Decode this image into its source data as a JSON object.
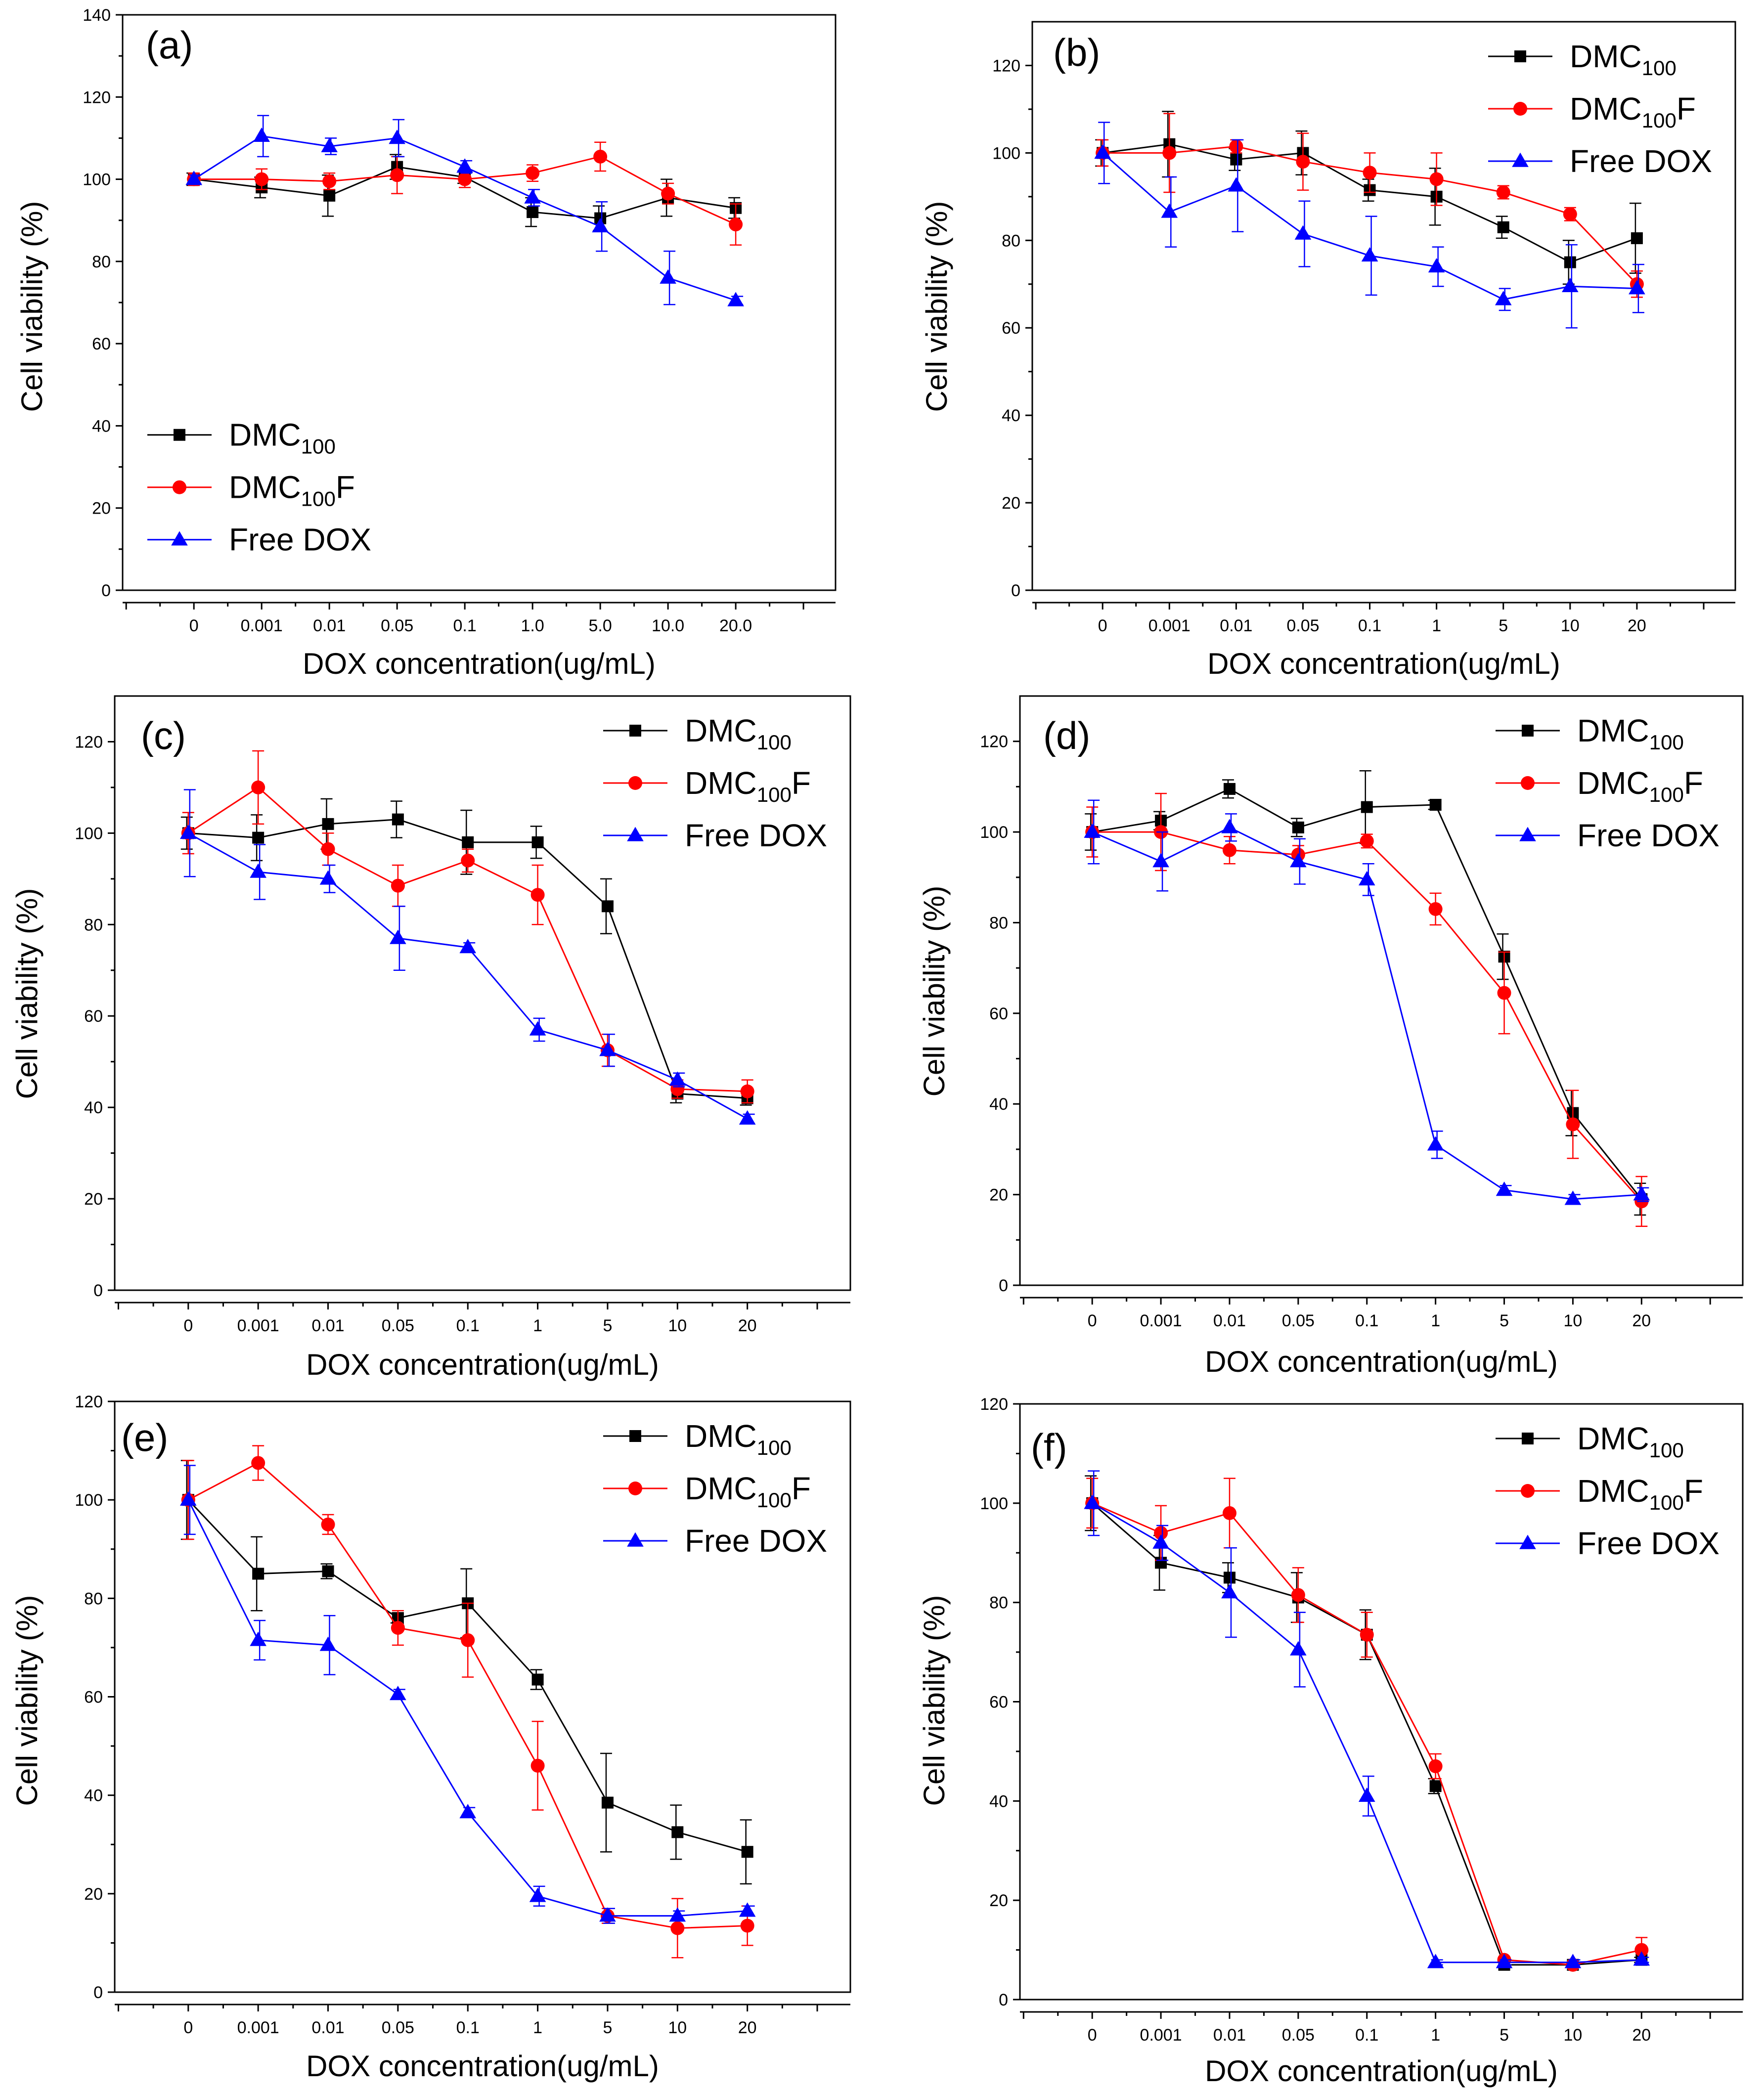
{
  "chart_data": [
    {
      "panel": "(a)",
      "type": "line",
      "xlabel": "DOX concentration(ug/mL)",
      "ylabel": "Cell viability (%)",
      "categories": [
        "0",
        "0.001",
        "0.01",
        "0.05",
        "0.1",
        "1.0",
        "5.0",
        "10.0",
        "20.0"
      ],
      "ylim": [
        0,
        140
      ],
      "yticks": [
        0,
        20,
        40,
        60,
        80,
        100,
        120,
        140
      ],
      "legend_position": "bottom-left",
      "series": [
        {
          "name": "DMC100",
          "label_main": "DMC",
          "label_sub": "100",
          "label_tail": "",
          "color": "#000000",
          "marker": "square",
          "values": [
            100,
            98,
            96,
            103,
            100.5,
            92,
            90.5,
            95.5,
            93
          ],
          "errors": [
            1.5,
            2.5,
            5,
            3,
            1.5,
            3.5,
            3,
            4.5,
            2.5
          ]
        },
        {
          "name": "DMC100F",
          "label_main": "DMC",
          "label_sub": "100",
          "label_tail": "F",
          "color": "#ff0000",
          "marker": "circle",
          "values": [
            100,
            100,
            99.5,
            101,
            100,
            101.5,
            105.5,
            96.5,
            89
          ],
          "errors": [
            1.5,
            2.5,
            2,
            4.5,
            2,
            2,
            3.5,
            2.5,
            5
          ]
        },
        {
          "name": "Free DOX",
          "label_main": "Free DOX",
          "label_sub": "",
          "label_tail": "",
          "color": "#0000ff",
          "marker": "triangle",
          "values": [
            100,
            110.5,
            108,
            110,
            103,
            95.5,
            88.5,
            76,
            70.5
          ],
          "errors": [
            1,
            5,
            2,
            4.5,
            1.5,
            2,
            6,
            6.5,
            1
          ]
        }
      ]
    },
    {
      "panel": "(b)",
      "type": "line",
      "xlabel": "DOX concentration(ug/mL)",
      "ylabel": "Cell viability (%)",
      "categories": [
        "0",
        "0.001",
        "0.01",
        "0.05",
        "0.1",
        "1",
        "5",
        "10",
        "20"
      ],
      "ylim": [
        0,
        130
      ],
      "yticks": [
        0,
        20,
        40,
        60,
        80,
        100,
        120
      ],
      "legend_position": "top-right",
      "series": [
        {
          "name": "DMC100",
          "label_main": "DMC",
          "label_sub": "100",
          "label_tail": "",
          "color": "#000000",
          "marker": "square",
          "values": [
            100,
            102,
            98.5,
            100,
            91.5,
            90,
            83,
            75,
            80.5
          ],
          "errors": [
            3,
            7.5,
            2.5,
            5,
            2.5,
            6.5,
            2.5,
            5,
            8
          ]
        },
        {
          "name": "DMC100F",
          "label_main": "DMC",
          "label_sub": "100",
          "label_tail": "F",
          "color": "#ff0000",
          "marker": "circle",
          "values": [
            100,
            100,
            101.5,
            98,
            95.5,
            94,
            91,
            86,
            70
          ],
          "errors": [
            3,
            9,
            1.5,
            6.5,
            4.5,
            6,
            1.5,
            1.5,
            3
          ]
        },
        {
          "name": "Free DOX",
          "label_main": "Free DOX",
          "label_sub": "",
          "label_tail": "",
          "color": "#0000ff",
          "marker": "triangle",
          "values": [
            100,
            86.5,
            92.5,
            81.5,
            76.5,
            74,
            66.5,
            69.5,
            69
          ],
          "errors": [
            7,
            8,
            10.5,
            7.5,
            9,
            4.5,
            2.5,
            9.5,
            5.5
          ]
        }
      ]
    },
    {
      "panel": "(c)",
      "type": "line",
      "xlabel": "DOX concentration(ug/mL)",
      "ylabel": "Cell viability (%)",
      "categories": [
        "0",
        "0.001",
        "0.01",
        "0.05",
        "0.1",
        "1",
        "5",
        "10",
        "20"
      ],
      "ylim": [
        0,
        130
      ],
      "yticks": [
        0,
        20,
        40,
        60,
        80,
        100,
        120
      ],
      "legend_position": "top-right",
      "series": [
        {
          "name": "DMC100",
          "label_main": "DMC",
          "label_sub": "100",
          "label_tail": "",
          "color": "#000000",
          "marker": "square",
          "values": [
            100,
            99,
            102,
            103,
            98,
            98,
            84,
            43,
            42
          ],
          "errors": [
            3.5,
            5,
            5.5,
            4,
            7,
            3.5,
            6,
            2,
            1.5
          ]
        },
        {
          "name": "DMC100F",
          "label_main": "DMC",
          "label_sub": "100",
          "label_tail": "F",
          "color": "#ff0000",
          "marker": "circle",
          "values": [
            100,
            110,
            96.5,
            88.5,
            94,
            86.5,
            52.5,
            44,
            43.5
          ],
          "errors": [
            4.5,
            8,
            3.5,
            4.5,
            2.5,
            6.5,
            3.5,
            2,
            2.5
          ]
        },
        {
          "name": "Free DOX",
          "label_main": "Free DOX",
          "label_sub": "",
          "label_tail": "",
          "color": "#0000ff",
          "marker": "triangle",
          "values": [
            100,
            91.5,
            90,
            77,
            75,
            57,
            52.5,
            46,
            37.5
          ],
          "errors": [
            9.5,
            6,
            3,
            7,
            1,
            2.5,
            3.5,
            1.5,
            1
          ]
        }
      ]
    },
    {
      "panel": "(d)",
      "type": "line",
      "xlabel": "DOX concentration(ug/mL)",
      "ylabel": "Cell viability (%)",
      "categories": [
        "0",
        "0.001",
        "0.01",
        "0.05",
        "0.1",
        "1",
        "5",
        "10",
        "20"
      ],
      "ylim": [
        0,
        130
      ],
      "yticks": [
        0,
        20,
        40,
        60,
        80,
        100,
        120
      ],
      "legend_position": "top-right",
      "series": [
        {
          "name": "DMC100",
          "label_main": "DMC",
          "label_sub": "100",
          "label_tail": "",
          "color": "#000000",
          "marker": "square",
          "values": [
            100,
            102.5,
            109.5,
            101,
            105.5,
            106,
            72.5,
            38,
            19
          ],
          "errors": [
            4,
            2,
            2,
            2,
            8,
            1,
            5,
            5,
            3.5
          ]
        },
        {
          "name": "DMC100F",
          "label_main": "DMC",
          "label_sub": "100",
          "label_tail": "F",
          "color": "#ff0000",
          "marker": "circle",
          "values": [
            100,
            100,
            96,
            95,
            98,
            83,
            64.5,
            35.5,
            18.5
          ],
          "errors": [
            5.5,
            8.5,
            3,
            2,
            1.5,
            3.5,
            9,
            7.5,
            5.5
          ]
        },
        {
          "name": "Free DOX",
          "label_main": "Free DOX",
          "label_sub": "",
          "label_tail": "",
          "color": "#0000ff",
          "marker": "triangle",
          "values": [
            100,
            93.5,
            101,
            93.5,
            89.5,
            31,
            21,
            19,
            20
          ],
          "errors": [
            7,
            6.5,
            3,
            5,
            3.5,
            3,
            1,
            1,
            1.5
          ]
        }
      ]
    },
    {
      "panel": "(e)",
      "type": "line",
      "xlabel": "DOX concentration(ug/mL)",
      "ylabel": "Cell viability (%)",
      "categories": [
        "0",
        "0.001",
        "0.01",
        "0.05",
        "0.1",
        "1",
        "5",
        "10",
        "20"
      ],
      "ylim": [
        0,
        120
      ],
      "yticks": [
        0,
        20,
        40,
        60,
        80,
        100,
        120
      ],
      "legend_position": "top-right",
      "series": [
        {
          "name": "DMC100",
          "label_main": "DMC",
          "label_sub": "100",
          "label_tail": "",
          "color": "#000000",
          "marker": "square",
          "values": [
            100,
            85,
            85.5,
            76,
            79,
            63.5,
            38.5,
            32.5,
            28.5
          ],
          "errors": [
            8,
            7.5,
            1.5,
            1,
            7,
            2,
            10,
            5.5,
            6.5
          ]
        },
        {
          "name": "DMC100F",
          "label_main": "DMC",
          "label_sub": "100",
          "label_tail": "F",
          "color": "#ff0000",
          "marker": "circle",
          "values": [
            100,
            107.5,
            95,
            74,
            71.5,
            46,
            15.5,
            13,
            13.5
          ],
          "errors": [
            8,
            3.5,
            2,
            3.5,
            7.5,
            9,
            1.5,
            6,
            4
          ]
        },
        {
          "name": "Free DOX",
          "label_main": "Free DOX",
          "label_sub": "",
          "label_tail": "",
          "color": "#0000ff",
          "marker": "triangle",
          "values": [
            100,
            71.5,
            70.5,
            60.5,
            36.5,
            19.5,
            15.5,
            15.5,
            16.5
          ],
          "errors": [
            7,
            4,
            6,
            1,
            1,
            2,
            1.5,
            1,
            1
          ]
        }
      ]
    },
    {
      "panel": "(f)",
      "type": "line",
      "xlabel": "DOX concentration(ug/mL)",
      "ylabel": "Cell viability (%)",
      "categories": [
        "0",
        "0.001",
        "0.01",
        "0.05",
        "0.1",
        "1",
        "5",
        "10",
        "20"
      ],
      "ylim": [
        0,
        120
      ],
      "yticks": [
        0,
        20,
        40,
        60,
        80,
        100,
        120
      ],
      "legend_position": "top-right",
      "series": [
        {
          "name": "DMC100",
          "label_main": "DMC",
          "label_sub": "100",
          "label_tail": "",
          "color": "#000000",
          "marker": "square",
          "values": [
            100,
            88,
            85,
            81,
            73.5,
            43,
            7,
            7,
            8
          ],
          "errors": [
            5.5,
            5.5,
            3,
            5,
            5,
            1.5,
            0.5,
            0.5,
            0.5
          ]
        },
        {
          "name": "DMC100F",
          "label_main": "DMC",
          "label_sub": "100",
          "label_tail": "F",
          "color": "#ff0000",
          "marker": "circle",
          "values": [
            100,
            94,
            98,
            81.5,
            73.5,
            47,
            8,
            7,
            10
          ],
          "errors": [
            5,
            5.5,
            7,
            5.5,
            4.5,
            2.5,
            0.5,
            0.5,
            2.5
          ]
        },
        {
          "name": "Free DOX",
          "label_main": "Free DOX",
          "label_sub": "",
          "label_tail": "",
          "color": "#0000ff",
          "marker": "triangle",
          "values": [
            100,
            92,
            82,
            70.5,
            41,
            7.5,
            7.5,
            7.5,
            8
          ],
          "errors": [
            6.5,
            3.5,
            9,
            7.5,
            4,
            0.5,
            0.5,
            0.5,
            0.5
          ]
        }
      ]
    }
  ]
}
